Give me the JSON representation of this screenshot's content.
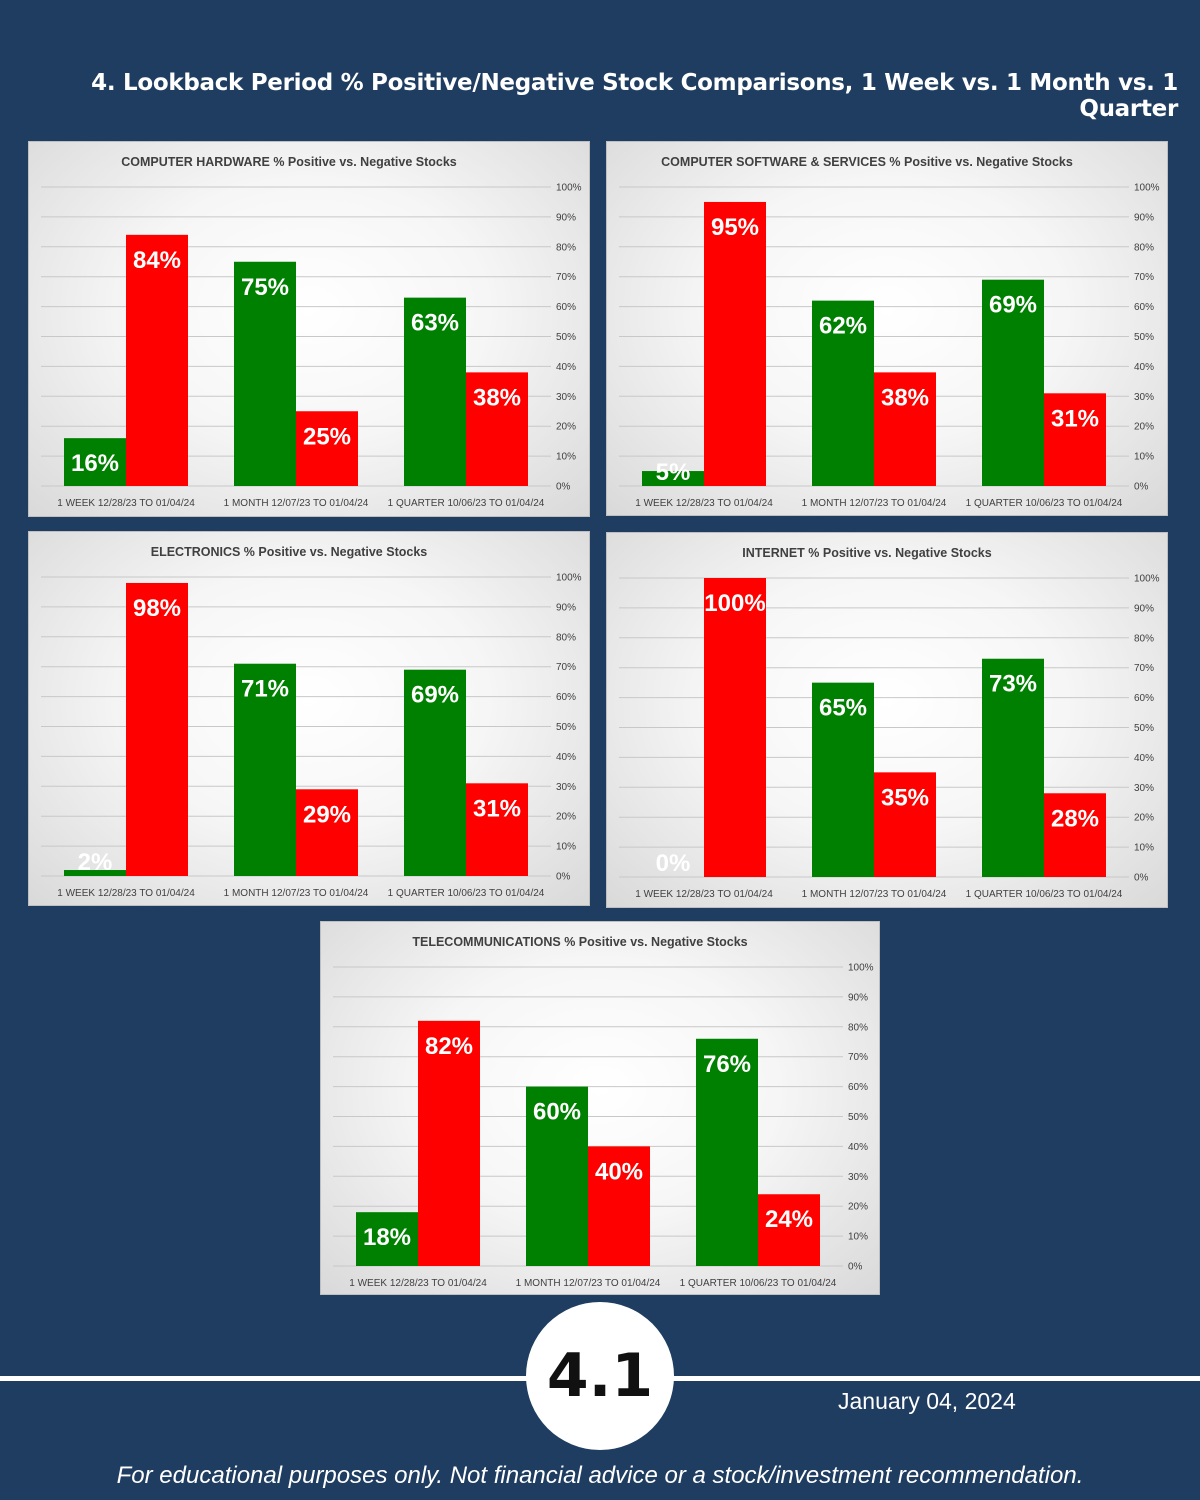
{
  "page": {
    "title": "4. Lookback Period % Positive/Negative Stock Comparisons, 1 Week vs. 1 Month vs. 1 Quarter",
    "page_number": "4.1",
    "date": "January 04, 2024",
    "disclaimer": "For educational purposes only. Not financial advice or a stock/investment recommendation."
  },
  "colors": {
    "background": "#1f3d60",
    "positive": "#008000",
    "negative": "#ff0000"
  },
  "chart_data": [
    {
      "type": "bar",
      "title": "COMPUTER HARDWARE % Positive vs. Negative Stocks",
      "categories": [
        "1 WEEK 12/28/23 TO 01/04/24",
        "1 MONTH 12/07/23 TO 01/04/24",
        "1 QUARTER 10/06/23 TO 01/04/24"
      ],
      "series": [
        {
          "name": "Positive",
          "values": [
            16,
            75,
            63
          ],
          "labels": [
            "16%",
            "75%",
            "63%"
          ]
        },
        {
          "name": "Negative",
          "values": [
            84,
            25,
            38
          ],
          "labels": [
            "84%",
            "25%",
            "38%"
          ]
        }
      ],
      "y_ticks": [
        "0%",
        "10%",
        "20%",
        "30%",
        "40%",
        "50%",
        "60%",
        "70%",
        "80%",
        "90%",
        "100%"
      ],
      "ylim": [
        0,
        100
      ]
    },
    {
      "type": "bar",
      "title": "COMPUTER SOFTWARE & SERVICES % Positive vs. Negative Stocks",
      "categories": [
        "1 WEEK 12/28/23 TO 01/04/24",
        "1 MONTH 12/07/23 TO 01/04/24",
        "1 QUARTER 10/06/23 TO 01/04/24"
      ],
      "series": [
        {
          "name": "Positive",
          "values": [
            5,
            62,
            69
          ],
          "labels": [
            "5%",
            "62%",
            "69%"
          ]
        },
        {
          "name": "Negative",
          "values": [
            95,
            38,
            31
          ],
          "labels": [
            "95%",
            "38%",
            "31%"
          ]
        }
      ],
      "y_ticks": [
        "0%",
        "10%",
        "20%",
        "30%",
        "40%",
        "50%",
        "60%",
        "70%",
        "80%",
        "90%",
        "100%"
      ],
      "ylim": [
        0,
        100
      ]
    },
    {
      "type": "bar",
      "title": "ELECTRONICS % Positive vs. Negative Stocks",
      "categories": [
        "1 WEEK 12/28/23 TO 01/04/24",
        "1 MONTH 12/07/23 TO 01/04/24",
        "1 QUARTER 10/06/23 TO 01/04/24"
      ],
      "series": [
        {
          "name": "Positive",
          "values": [
            2,
            71,
            69
          ],
          "labels": [
            "2%",
            "71%",
            "69%"
          ]
        },
        {
          "name": "Negative",
          "values": [
            98,
            29,
            31
          ],
          "labels": [
            "98%",
            "29%",
            "31%"
          ]
        }
      ],
      "y_ticks": [
        "0%",
        "10%",
        "20%",
        "30%",
        "40%",
        "50%",
        "60%",
        "70%",
        "80%",
        "90%",
        "100%"
      ],
      "ylim": [
        0,
        100
      ]
    },
    {
      "type": "bar",
      "title": "INTERNET % Positive vs. Negative Stocks",
      "categories": [
        "1 WEEK 12/28/23 TO 01/04/24",
        "1 MONTH 12/07/23 TO 01/04/24",
        "1 QUARTER 10/06/23 TO 01/04/24"
      ],
      "series": [
        {
          "name": "Positive",
          "values": [
            0,
            65,
            73
          ],
          "labels": [
            "0%",
            "65%",
            "73%"
          ]
        },
        {
          "name": "Negative",
          "values": [
            100,
            35,
            28
          ],
          "labels": [
            "100%",
            "35%",
            "28%"
          ]
        }
      ],
      "y_ticks": [
        "0%",
        "10%",
        "20%",
        "30%",
        "40%",
        "50%",
        "60%",
        "70%",
        "80%",
        "90%",
        "100%"
      ],
      "ylim": [
        0,
        100
      ]
    },
    {
      "type": "bar",
      "title": "TELECOMMUNICATIONS % Positive vs. Negative Stocks",
      "categories": [
        "1 WEEK 12/28/23 TO 01/04/24",
        "1 MONTH 12/07/23 TO 01/04/24",
        "1 QUARTER 10/06/23 TO 01/04/24"
      ],
      "series": [
        {
          "name": "Positive",
          "values": [
            18,
            60,
            76
          ],
          "labels": [
            "18%",
            "60%",
            "76%"
          ]
        },
        {
          "name": "Negative",
          "values": [
            82,
            40,
            24
          ],
          "labels": [
            "82%",
            "40%",
            "24%"
          ]
        }
      ],
      "y_ticks": [
        "0%",
        "10%",
        "20%",
        "30%",
        "40%",
        "50%",
        "60%",
        "70%",
        "80%",
        "90%",
        "100%"
      ],
      "ylim": [
        0,
        100
      ]
    }
  ]
}
